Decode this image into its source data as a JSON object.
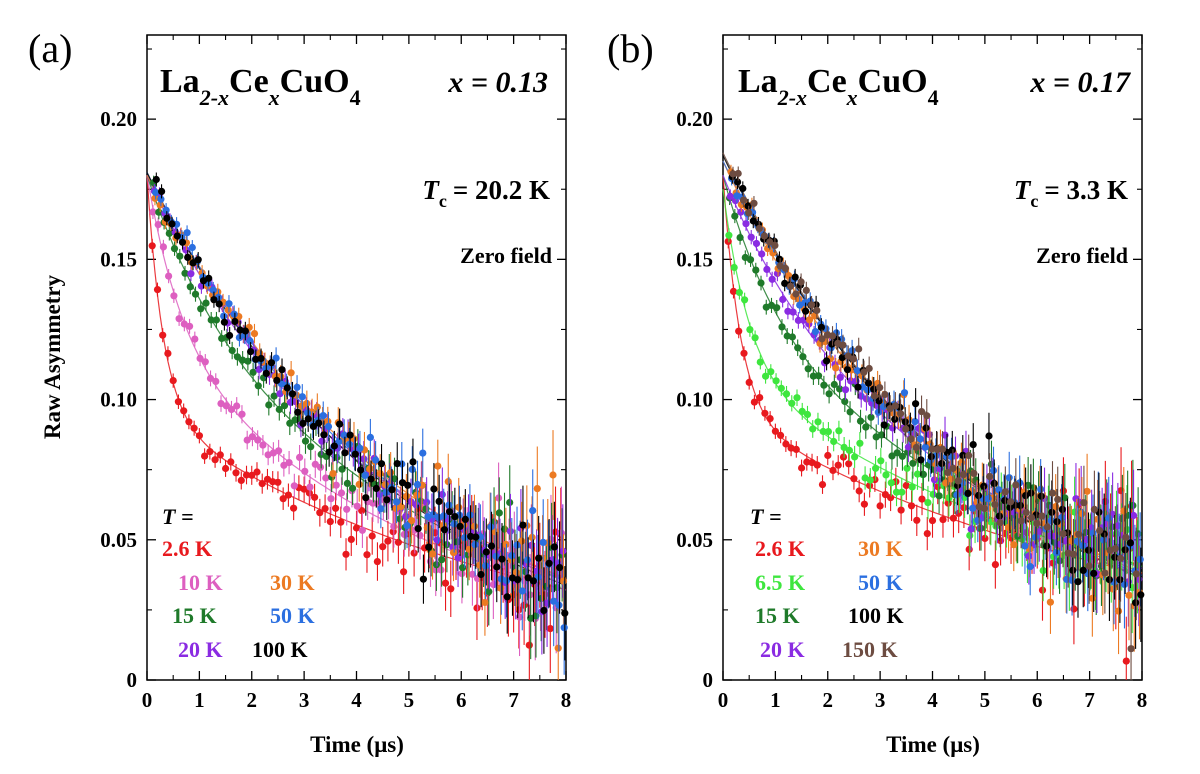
{
  "chart_data": [
    {
      "type": "scatter",
      "panel_label": "(a)",
      "formula": {
        "base1": "La",
        "sub1": "2-x",
        "base2": "Ce",
        "sub2": "x",
        "base3": "CuO",
        "sub3": "4"
      },
      "x_annotation": "x = 0.13",
      "tc_annotation": {
        "symbol": "T",
        "sub": "c",
        "value": "= 20.2 K"
      },
      "field_annotation": "Zero field",
      "legend_title": "T =",
      "xlabel": "Time (μs)",
      "ylabel": "Raw Asymmetry",
      "xlim": [
        0,
        8
      ],
      "ylim": [
        0,
        0.23
      ],
      "x_ticks": [
        "0",
        "1",
        "2",
        "3",
        "4",
        "5",
        "6",
        "7",
        "8"
      ],
      "y_ticks": [
        "0",
        "0.05",
        "0.10",
        "0.15",
        "0.20"
      ],
      "series": [
        {
          "name": "2.6 K",
          "color": "#e8191e",
          "a_fast": 0.085,
          "lam_fast": 3.2,
          "a_slow": 0.095,
          "lam_slow": 0.135
        },
        {
          "name": "10 K",
          "color": "#dd5fc0",
          "a_fast": 0.06,
          "lam_fast": 1.5,
          "a_slow": 0.12,
          "lam_slow": 0.165
        },
        {
          "name": "15 K",
          "color": "#1f7a2a",
          "a_fast": 0.035,
          "lam_fast": 0.9,
          "a_slow": 0.145,
          "lam_slow": 0.175
        },
        {
          "name": "20 K",
          "color": "#8a2be2",
          "a_fast": 0.015,
          "lam_fast": 0.6,
          "a_slow": 0.165,
          "lam_slow": 0.19
        },
        {
          "name": "30 K",
          "color": "#ec7a22",
          "a_fast": 0.0,
          "lam_fast": 1.0,
          "a_slow": 0.18,
          "lam_slow": 0.2
        },
        {
          "name": "50 K",
          "color": "#2b6fe0",
          "a_fast": 0.0,
          "lam_fast": 1.0,
          "a_slow": 0.181,
          "lam_slow": 0.205
        },
        {
          "name": "100 K",
          "color": "#000000",
          "a_fast": 0.0,
          "lam_fast": 1.0,
          "a_slow": 0.181,
          "lam_slow": 0.21
        }
      ]
    },
    {
      "type": "scatter",
      "panel_label": "(b)",
      "formula": {
        "base1": "La",
        "sub1": "2-x",
        "base2": "Ce",
        "sub2": "x",
        "base3": "CuO",
        "sub3": "4"
      },
      "x_annotation": "x = 0.17",
      "tc_annotation": {
        "symbol": "T",
        "sub": "c",
        "value": "= 3.3 K"
      },
      "field_annotation": "Zero field",
      "legend_title": "T =",
      "xlabel": "Time (μs)",
      "ylabel": "",
      "xlim": [
        0,
        8
      ],
      "ylim": [
        0,
        0.23
      ],
      "x_ticks": [
        "0",
        "1",
        "2",
        "3",
        "4",
        "5",
        "6",
        "7",
        "8"
      ],
      "y_ticks": [
        "0",
        "0.05",
        "0.10",
        "0.15",
        "0.20"
      ],
      "series": [
        {
          "name": "2.6 K",
          "color": "#e8191e",
          "a_fast": 0.085,
          "lam_fast": 3.0,
          "a_slow": 0.095,
          "lam_slow": 0.115
        },
        {
          "name": "6.5 K",
          "color": "#3ee63e",
          "a_fast": 0.065,
          "lam_fast": 2.0,
          "a_slow": 0.11,
          "lam_slow": 0.125
        },
        {
          "name": "15 K",
          "color": "#1f7a2a",
          "a_fast": 0.045,
          "lam_fast": 1.1,
          "a_slow": 0.135,
          "lam_slow": 0.15
        },
        {
          "name": "20 K",
          "color": "#8a2be2",
          "a_fast": 0.025,
          "lam_fast": 0.8,
          "a_slow": 0.155,
          "lam_slow": 0.17
        },
        {
          "name": "30 K",
          "color": "#ec7a22",
          "a_fast": 0.01,
          "lam_fast": 0.7,
          "a_slow": 0.175,
          "lam_slow": 0.19
        },
        {
          "name": "50 K",
          "color": "#2b6fe0",
          "a_fast": 0.0,
          "lam_fast": 1.0,
          "a_slow": 0.185,
          "lam_slow": 0.2
        },
        {
          "name": "100 K",
          "color": "#000000",
          "a_fast": 0.0,
          "lam_fast": 1.0,
          "a_slow": 0.187,
          "lam_slow": 0.205
        },
        {
          "name": "150 K",
          "color": "#6d4c41",
          "a_fast": 0.0,
          "lam_fast": 1.0,
          "a_slow": 0.188,
          "lam_slow": 0.205
        }
      ]
    }
  ]
}
